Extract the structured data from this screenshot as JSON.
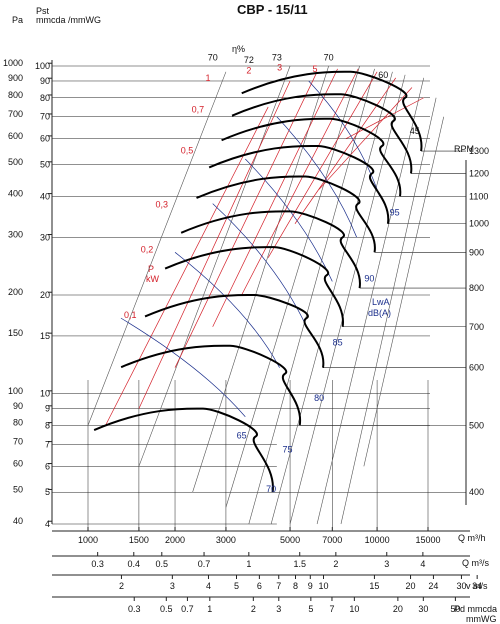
{
  "chart_data": {
    "type": "line",
    "title": "CBP - 15/11",
    "axis_labels": {
      "pst": "Pst",
      "pa": "Pa",
      "mmcda": "mmcda /mmWG",
      "rpm": "RPM",
      "q_m3h": "Q m³/h",
      "q_m3s": "Q m³/s",
      "v_ms": "v m/s",
      "pd_mmcda": "Pd mmcda",
      "pd_mmwg": "mmWG",
      "power_p": "P",
      "power_kw": "kW",
      "lwa": "LwA",
      "dba": "dB(A)",
      "eta": "η%"
    },
    "pa_ticks": [
      40,
      50,
      60,
      70,
      80,
      90,
      100,
      150,
      200,
      300,
      400,
      500,
      600,
      700,
      800,
      900,
      1000
    ],
    "mm_ticks": [
      4,
      5,
      6,
      7,
      8,
      9,
      10,
      15,
      20,
      30,
      40,
      50,
      60,
      70,
      80,
      90,
      100
    ],
    "q_m3h_ticks": [
      1000,
      1500,
      2000,
      3000,
      5000,
      7000,
      10000,
      15000
    ],
    "q_m3s_ticks": [
      "0.3",
      "0.4",
      "0.5",
      "0.7",
      "1",
      "1.5",
      "2",
      "3",
      "4"
    ],
    "v_ticks": [
      "2",
      "3",
      "4",
      "5",
      "6",
      "7",
      "8",
      "9",
      "10",
      "15",
      "20",
      "24",
      "30",
      "34"
    ],
    "pd_ticks": [
      "0.3",
      "0.5",
      "0.7",
      "1",
      "2",
      "3",
      "5",
      "7",
      "10",
      "20",
      "30",
      "50"
    ],
    "rpm_series": [
      {
        "rpm": 1300,
        "peak_pst_mmwg": 96,
        "curve": [
          [
            8100,
            96
          ],
          [
            12500,
            80
          ],
          [
            14200,
            55
          ]
        ]
      },
      {
        "rpm": 1200,
        "peak_pst_mmwg": 82,
        "curve": [
          [
            7500,
            82
          ],
          [
            11400,
            68
          ],
          [
            13100,
            47
          ]
        ]
      },
      {
        "rpm": 1100,
        "peak_pst_mmwg": 69,
        "curve": [
          [
            6900,
            69
          ],
          [
            10400,
            57
          ],
          [
            12000,
            40
          ]
        ]
      },
      {
        "rpm": 1000,
        "peak_pst_mmwg": 57,
        "curve": [
          [
            6250,
            57
          ],
          [
            9600,
            47
          ],
          [
            10900,
            33
          ]
        ]
      },
      {
        "rpm": 900,
        "peak_pst_mmwg": 46,
        "curve": [
          [
            5650,
            46
          ],
          [
            8600,
            38
          ],
          [
            9800,
            27
          ]
        ]
      },
      {
        "rpm": 800,
        "peak_pst_mmwg": 36,
        "curve": [
          [
            5000,
            36
          ],
          [
            7600,
            30
          ],
          [
            8700,
            21
          ]
        ]
      },
      {
        "rpm": 700,
        "peak_pst_mmwg": 28,
        "curve": [
          [
            4400,
            28
          ],
          [
            6700,
            23
          ],
          [
            7600,
            16
          ]
        ]
      },
      {
        "rpm": 600,
        "peak_pst_mmwg": 20,
        "curve": [
          [
            3750,
            20
          ],
          [
            5700,
            17
          ],
          [
            6500,
            12
          ]
        ]
      },
      {
        "rpm": 500,
        "peak_pst_mmwg": 14,
        "curve": [
          [
            3100,
            14
          ],
          [
            4800,
            11.5
          ],
          [
            5400,
            8
          ]
        ]
      },
      {
        "rpm": 400,
        "peak_pst_mmwg": 9,
        "curve": [
          [
            2500,
            9
          ],
          [
            3800,
            7.4
          ],
          [
            4350,
            5
          ]
        ]
      }
    ],
    "efficiency_labels": [
      "70",
      "72",
      "73",
      "70",
      "60",
      "45"
    ],
    "power_labels": [
      "0,1",
      "0,2",
      "0,3",
      "0,5",
      "0,7",
      "1",
      "2",
      "3",
      "5"
    ],
    "noise_labels": [
      "65",
      "70",
      "75",
      "80",
      "85",
      "90",
      "95"
    ],
    "xlim": [
      1000,
      17000
    ],
    "ylim_mmwg": [
      4,
      115
    ],
    "scale": "log-log"
  },
  "colors": {
    "grid": "#222222",
    "rpm_curve": "#000000",
    "efficiency_line": "#555555",
    "power_line": "#d4202a",
    "noise_line": "#1b2f8c"
  }
}
